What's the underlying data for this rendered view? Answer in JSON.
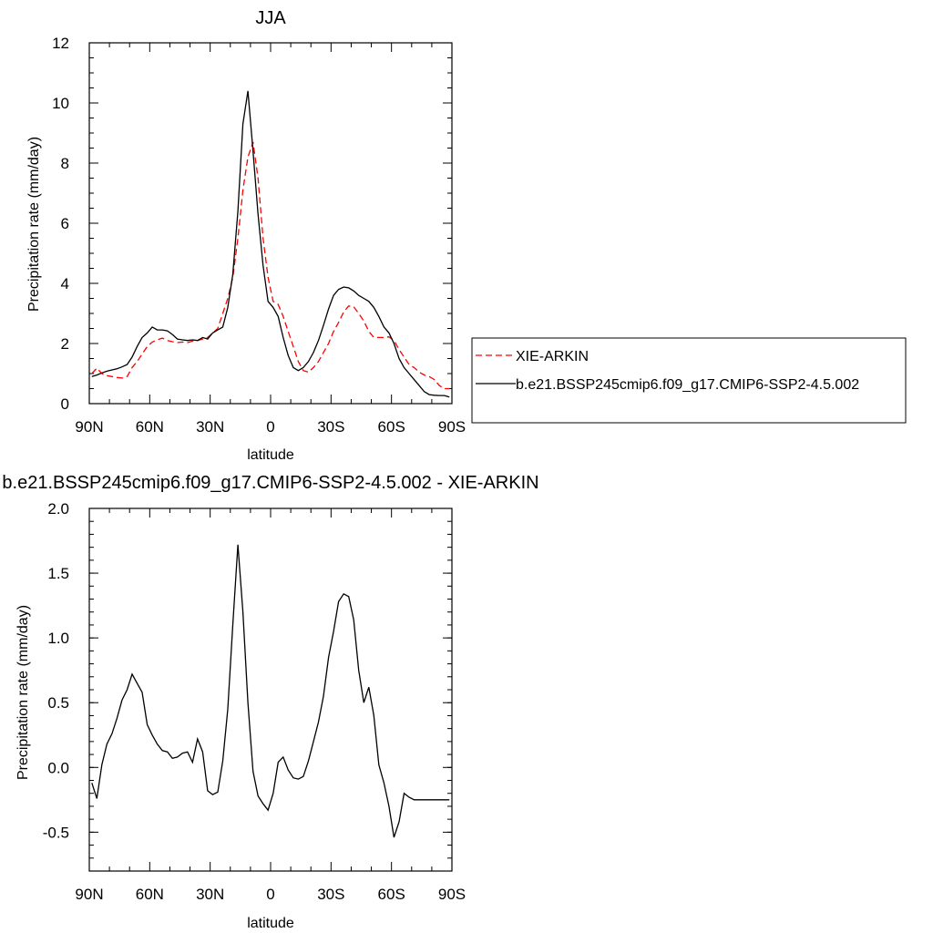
{
  "chart_data": [
    {
      "type": "line",
      "title": "JJA",
      "xlabel": "latitude",
      "ylabel": "Precipitation rate (mm/day)",
      "xlim": [
        90,
        -90
      ],
      "ylim": [
        0,
        12
      ],
      "x_tick_values": [
        90,
        60,
        30,
        0,
        -30,
        -60,
        -90
      ],
      "x_tick_labels": [
        "90N",
        "60N",
        "30N",
        "0",
        "30S",
        "60S",
        "90S"
      ],
      "y_tick_values": [
        0,
        2,
        4,
        6,
        8,
        10,
        12
      ],
      "y_tick_labels": [
        "0",
        "2",
        "4",
        "6",
        "8",
        "10",
        "12"
      ],
      "grid": false,
      "legend": {
        "placement": "right",
        "entries": [
          "XIE-ARKIN",
          "b.e21.BSSP245cmip6.f09_g17.CMIP6-SSP2-4.5.002"
        ]
      },
      "series": [
        {
          "name": "XIE-ARKIN",
          "color": "#ff0000",
          "dash": "dashed",
          "x": [
            88.75,
            86.25,
            83.75,
            81.25,
            78.75,
            76.25,
            73.75,
            71.25,
            68.75,
            66.25,
            63.75,
            61.25,
            58.75,
            56.25,
            53.75,
            51.25,
            48.75,
            46.25,
            43.75,
            41.25,
            38.75,
            36.25,
            33.75,
            31.25,
            28.75,
            26.25,
            23.75,
            21.25,
            18.75,
            16.25,
            13.75,
            11.25,
            8.75,
            6.25,
            3.75,
            1.25,
            -1.25,
            -3.75,
            -6.25,
            -8.75,
            -11.25,
            -13.75,
            -16.25,
            -18.75,
            -21.25,
            -23.75,
            -26.25,
            -28.75,
            -31.25,
            -33.75,
            -36.25,
            -38.75,
            -41.25,
            -43.75,
            -46.25,
            -48.75,
            -51.25,
            -53.75,
            -56.25,
            -58.75,
            -61.25,
            -63.75,
            -66.25,
            -68.75,
            -71.25,
            -73.75,
            -76.25,
            -78.75,
            -81.25,
            -83.75,
            -86.25,
            -88.75
          ],
          "y": [
            1.0,
            1.18,
            1.0,
            0.93,
            0.9,
            0.87,
            0.85,
            0.9,
            1.2,
            1.4,
            1.65,
            1.9,
            2.05,
            2.12,
            2.18,
            2.1,
            2.06,
            2.03,
            2.05,
            2.03,
            2.08,
            2.1,
            2.15,
            2.2,
            2.35,
            2.5,
            3.0,
            3.5,
            4.2,
            5.5,
            7.1,
            8.2,
            8.7,
            7.5,
            5.5,
            4.2,
            3.4,
            3.3,
            2.9,
            2.4,
            1.9,
            1.4,
            1.1,
            1.05,
            1.2,
            1.4,
            1.7,
            2.0,
            2.4,
            2.7,
            3.05,
            3.25,
            3.22,
            3.0,
            2.75,
            2.4,
            2.2,
            2.2,
            2.2,
            2.22,
            2.1,
            1.8,
            1.55,
            1.3,
            1.2,
            1.05,
            0.95,
            0.9,
            0.8,
            0.6,
            0.5,
            0.5
          ]
        },
        {
          "name": "b.e21.BSSP245cmip6.f09_g17.CMIP6-SSP2-4.5.002",
          "color": "#000000",
          "dash": "solid",
          "x": [
            88.75,
            86.25,
            83.75,
            81.25,
            78.75,
            76.25,
            73.75,
            71.25,
            68.75,
            66.25,
            63.75,
            61.25,
            58.75,
            56.25,
            53.75,
            51.25,
            48.75,
            46.25,
            43.75,
            41.25,
            38.75,
            36.25,
            33.75,
            31.25,
            28.75,
            26.25,
            23.75,
            21.25,
            18.75,
            16.25,
            13.75,
            11.25,
            8.75,
            6.25,
            3.75,
            1.25,
            -1.25,
            -3.75,
            -6.25,
            -8.75,
            -11.25,
            -13.75,
            -16.25,
            -18.75,
            -21.25,
            -23.75,
            -26.25,
            -28.75,
            -31.25,
            -33.75,
            -36.25,
            -38.75,
            -41.25,
            -43.75,
            -46.25,
            -48.75,
            -51.25,
            -53.75,
            -56.25,
            -58.75,
            -61.25,
            -63.75,
            -66.25,
            -68.75,
            -71.25,
            -73.75,
            -76.25,
            -78.75,
            -81.25,
            -83.75,
            -86.25,
            -88.75
          ],
          "y": [
            0.9,
            0.95,
            1.02,
            1.08,
            1.12,
            1.16,
            1.22,
            1.3,
            1.55,
            1.9,
            2.2,
            2.35,
            2.55,
            2.45,
            2.45,
            2.42,
            2.3,
            2.15,
            2.12,
            2.1,
            2.12,
            2.1,
            2.2,
            2.15,
            2.35,
            2.45,
            2.55,
            3.2,
            4.3,
            6.4,
            9.3,
            10.4,
            8.4,
            6.3,
            4.6,
            3.4,
            3.2,
            2.9,
            2.2,
            1.6,
            1.2,
            1.1,
            1.2,
            1.4,
            1.7,
            2.1,
            2.6,
            3.15,
            3.6,
            3.8,
            3.88,
            3.85,
            3.75,
            3.6,
            3.5,
            3.4,
            3.2,
            2.9,
            2.55,
            2.35,
            2.0,
            1.5,
            1.2,
            1.0,
            0.8,
            0.6,
            0.4,
            0.3,
            0.28,
            0.27,
            0.27,
            0.22
          ]
        }
      ]
    },
    {
      "type": "line",
      "title": "b.e21.BSSP245cmip6.f09_g17.CMIP6-SSP2-4.5.002 - XIE-ARKIN",
      "xlabel": "latitude",
      "ylabel": "Precipitation rate (mm/day)",
      "xlim": [
        90,
        -90
      ],
      "ylim": [
        -0.8,
        2.0
      ],
      "x_tick_values": [
        90,
        60,
        30,
        0,
        -30,
        -60,
        -90
      ],
      "x_tick_labels": [
        "90N",
        "60N",
        "30N",
        "0",
        "30S",
        "60S",
        "90S"
      ],
      "y_tick_values": [
        -0.5,
        0.0,
        0.5,
        1.0,
        1.5,
        2.0
      ],
      "y_tick_labels": [
        "-0.5",
        "0.0",
        "0.5",
        "1.0",
        "1.5",
        "2.0"
      ],
      "grid": false,
      "series": [
        {
          "color": "#000000",
          "dash": "solid",
          "x": [
            88.75,
            86.25,
            83.75,
            81.25,
            78.75,
            76.25,
            73.75,
            71.25,
            68.75,
            66.25,
            63.75,
            61.25,
            58.75,
            56.25,
            53.75,
            51.25,
            48.75,
            46.25,
            43.75,
            41.25,
            38.75,
            36.25,
            33.75,
            31.25,
            28.75,
            26.25,
            23.75,
            21.25,
            18.75,
            16.25,
            13.75,
            11.25,
            8.75,
            6.25,
            3.75,
            1.25,
            -1.25,
            -3.75,
            -6.25,
            -8.75,
            -11.25,
            -13.75,
            -16.25,
            -18.75,
            -21.25,
            -23.75,
            -26.25,
            -28.75,
            -31.25,
            -33.75,
            -36.25,
            -38.75,
            -41.25,
            -43.75,
            -46.25,
            -48.75,
            -51.25,
            -53.75,
            -56.25,
            -58.75,
            -61.25,
            -63.75,
            -66.25,
            -68.75,
            -71.25,
            -73.75,
            -76.25,
            -78.75,
            -81.25,
            -83.75,
            -86.25,
            -88.75
          ],
          "y": [
            -0.12,
            -0.24,
            0.02,
            0.18,
            0.26,
            0.38,
            0.52,
            0.6,
            0.72,
            0.65,
            0.58,
            0.33,
            0.25,
            0.18,
            0.13,
            0.12,
            0.07,
            0.08,
            0.11,
            0.12,
            0.04,
            0.22,
            0.12,
            -0.18,
            -0.21,
            -0.19,
            0.05,
            0.45,
            1.1,
            1.72,
            1.2,
            0.5,
            -0.03,
            -0.22,
            -0.28,
            -0.33,
            -0.2,
            0.04,
            0.08,
            -0.02,
            -0.08,
            -0.09,
            -0.07,
            0.05,
            0.2,
            0.35,
            0.55,
            0.85,
            1.05,
            1.28,
            1.34,
            1.32,
            1.14,
            0.75,
            0.5,
            0.62,
            0.4,
            0.02,
            -0.12,
            -0.3,
            -0.54,
            -0.42,
            -0.2,
            -0.23,
            -0.25,
            -0.25,
            -0.25,
            -0.25,
            -0.25,
            -0.25,
            -0.25,
            -0.25
          ]
        }
      ]
    }
  ]
}
